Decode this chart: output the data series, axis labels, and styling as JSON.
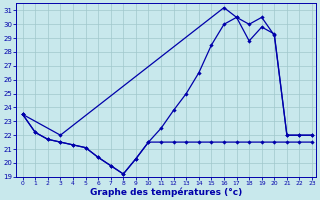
{
  "xlabel": "Graphe des températures (°c)",
  "xlim_min": -0.5,
  "xlim_max": 23.3,
  "ylim_min": 19,
  "ylim_max": 31.5,
  "yticks": [
    19,
    20,
    21,
    22,
    23,
    24,
    25,
    26,
    27,
    28,
    29,
    30,
    31
  ],
  "xticks": [
    0,
    1,
    2,
    3,
    4,
    5,
    6,
    7,
    8,
    9,
    10,
    11,
    12,
    13,
    14,
    15,
    16,
    17,
    18,
    19,
    20,
    21,
    22,
    23
  ],
  "line_color": "#0000aa",
  "bg_color": "#c8e8ec",
  "grid_color": "#a0c8cc",
  "line1_x": [
    0,
    1,
    2,
    3,
    4,
    5,
    6,
    7,
    8,
    9,
    10,
    11,
    12,
    13,
    14,
    15,
    16,
    17,
    18,
    19,
    20,
    21,
    22,
    23
  ],
  "line1_y": [
    23.5,
    22.2,
    21.7,
    21.5,
    21.3,
    21.1,
    20.4,
    19.8,
    19.2,
    20.3,
    21.5,
    21.5,
    21.5,
    21.5,
    21.5,
    21.5,
    21.5,
    21.5,
    21.5,
    21.5,
    21.5,
    21.5,
    21.5,
    21.5
  ],
  "line2_x": [
    0,
    1,
    2,
    3,
    4,
    5,
    6,
    7,
    8,
    9,
    10,
    11,
    12,
    13,
    14,
    15,
    16,
    17,
    18,
    19,
    20,
    21,
    22,
    23
  ],
  "line2_y": [
    23.5,
    22.2,
    21.7,
    21.5,
    21.3,
    21.1,
    20.4,
    19.8,
    19.2,
    20.3,
    21.5,
    22.5,
    23.8,
    25.0,
    26.5,
    28.5,
    30.0,
    30.5,
    30.0,
    30.5,
    29.2,
    22.0,
    22.0,
    22.0
  ],
  "line3_x": [
    0,
    3,
    16,
    17,
    18,
    19,
    20,
    21,
    22,
    23
  ],
  "line3_y": [
    23.5,
    22.0,
    31.2,
    30.5,
    28.8,
    29.8,
    29.3,
    22.0,
    22.0,
    22.0
  ]
}
